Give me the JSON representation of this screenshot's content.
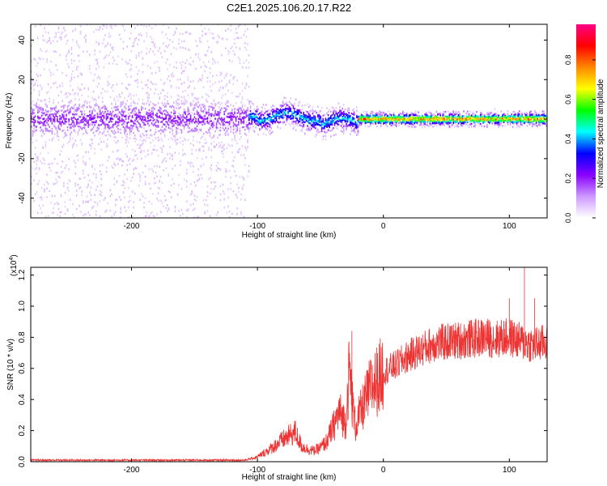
{
  "figure_title": "C2E1.2025.106.20.17.R22",
  "chart_data": [
    {
      "type": "heatmap",
      "xlabel": "Height of straight line (km)",
      "ylabel": "Frequency (Hz)",
      "xlim": [
        -280,
        130
      ],
      "ylim": [
        -50,
        48
      ],
      "x_ticks": [
        -200,
        -100,
        0,
        100
      ],
      "y_ticks": [
        -40,
        -20,
        0,
        20,
        40
      ],
      "grid": false,
      "colorbar": {
        "label": "Normalized spectral amplitude",
        "range": [
          0,
          0.98
        ],
        "ticks": [
          "0.0",
          "0.2",
          "0.4",
          "0.6",
          "0.8"
        ],
        "tick_values": [
          0,
          0.2,
          0.4,
          0.6,
          0.8
        ],
        "colormap": [
          "#ffffff",
          "#cc99ff",
          "#8800ff",
          "#0000ff",
          "#00ffff",
          "#00ff00",
          "#ffff00",
          "#ff8800",
          "#ff0000",
          "#ff0088"
        ]
      },
      "regions": [
        {
          "x_range": [
            -280,
            -107
          ],
          "freq_center": 0,
          "core_halfwidth": 8,
          "noise_halfwidth": 50,
          "amplitude": 0.25
        },
        {
          "x_range": [
            -107,
            -20
          ],
          "freq_center": 1,
          "core_halfwidth": 4,
          "noise_halfwidth": 8,
          "amplitude": 0.5
        },
        {
          "x_range": [
            -20,
            130
          ],
          "freq_center": 0,
          "core_halfwidth": 2,
          "noise_halfwidth": 4,
          "amplitude": 0.9
        }
      ]
    },
    {
      "type": "line",
      "xlabel": "Height of straight line (km)",
      "ylabel": "SNR (10 * v/v)",
      "y_multiplier": "(x10",
      "y_multiplier_exp": "4",
      "y_multiplier_close": ")",
      "xlim": [
        -280,
        130
      ],
      "ylim": [
        0,
        1.25
      ],
      "x_ticks": [
        -200,
        -100,
        0,
        100
      ],
      "y_ticks": [
        0,
        0.2,
        0.4,
        0.6,
        0.8,
        1.0,
        1.2
      ],
      "y_tick_labels": [
        "0.0",
        "0.2",
        "0.4",
        "0.6",
        "0.8",
        "1.0",
        "1.2"
      ],
      "grid": false,
      "color": "#ee3333",
      "series": [
        {
          "x": [
            -280,
            -250,
            -200,
            -150,
            -110,
            -100,
            -90,
            -80,
            -70,
            -65,
            -60,
            -55,
            -50,
            -45,
            -40,
            -35,
            -30,
            -27,
            -25,
            -22,
            -20,
            -15,
            -10,
            -5,
            0,
            10,
            20,
            30,
            40,
            50,
            60,
            70,
            80,
            90,
            100,
            110,
            120,
            130
          ],
          "values": [
            0.01,
            0.01,
            0.01,
            0.01,
            0.01,
            0.03,
            0.08,
            0.14,
            0.19,
            0.1,
            0.08,
            0.07,
            0.09,
            0.13,
            0.22,
            0.32,
            0.25,
            0.6,
            0.4,
            0.22,
            0.28,
            0.38,
            0.48,
            0.52,
            0.58,
            0.62,
            0.68,
            0.72,
            0.76,
            0.77,
            0.78,
            0.79,
            0.8,
            0.79,
            0.8,
            0.77,
            0.75,
            0.77
          ],
          "spikes": [
            {
              "x": -25,
              "value": 0.84
            },
            {
              "x": 100,
              "value": 1.05
            },
            {
              "x": 112,
              "value": 1.25
            },
            {
              "x": 120,
              "value": 1.05
            }
          ]
        }
      ]
    }
  ]
}
